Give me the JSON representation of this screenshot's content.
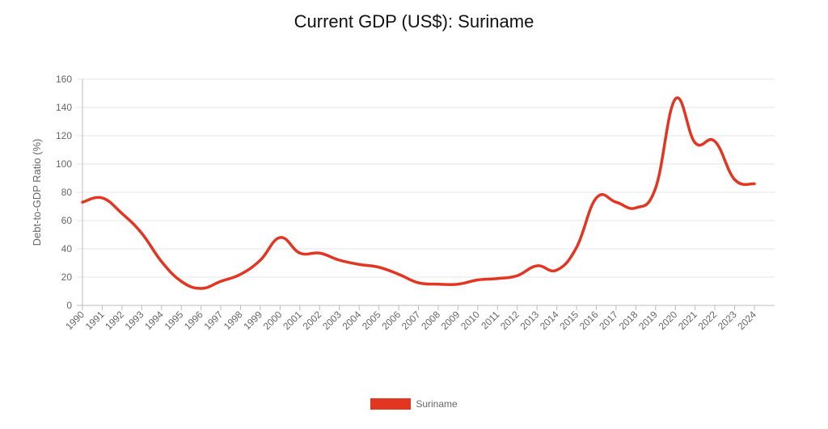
{
  "chart_data": {
    "type": "line",
    "title": "Current GDP (US$): Suriname",
    "xlabel": "",
    "ylabel": "Debt-to-GDP Ratio (%)",
    "ylim": [
      0,
      160
    ],
    "yticks": [
      0,
      20,
      40,
      60,
      80,
      100,
      120,
      140,
      160
    ],
    "grid": true,
    "legend_position": "bottom",
    "categories": [
      "1990",
      "1991",
      "1992",
      "1993",
      "1994",
      "1995",
      "1996",
      "1997",
      "1998",
      "1999",
      "2000",
      "2001",
      "2002",
      "2003",
      "2004",
      "2005",
      "2006",
      "2007",
      "2008",
      "2009",
      "2010",
      "2011",
      "2012",
      "2013",
      "2014",
      "2015",
      "2016",
      "2017",
      "2018",
      "2019",
      "2020",
      "2021",
      "2022",
      "2023",
      "2024"
    ],
    "series": [
      {
        "name": "Suriname",
        "color": "#e23522",
        "values": [
          73,
          76,
          65,
          51,
          31,
          17,
          12,
          17,
          22,
          32,
          48,
          37,
          37,
          32,
          29,
          27,
          22,
          16,
          15,
          15,
          18,
          19,
          21,
          28,
          25,
          41,
          76,
          73,
          69,
          83,
          146,
          115,
          116,
          89,
          86
        ]
      }
    ]
  }
}
